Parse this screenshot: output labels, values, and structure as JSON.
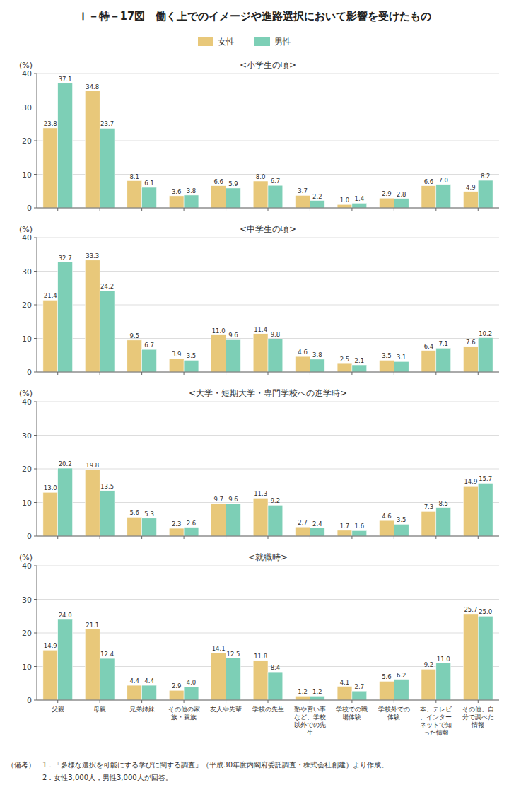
{
  "title": "Ｉ－特－17図　働く上でのイメージや進路選択において影響を受けたもの",
  "chart_data": [
    {
      "type": "bar",
      "subtitle": "<小学生の頃>",
      "categories": [
        "父親",
        "母親",
        "兄弟姉妹",
        "その他の家族・親族",
        "友人や先輩",
        "学校の先生",
        "塾や習い事など、学校以外での先生",
        "学校での職場体験",
        "学校外での体験",
        "本、テレビ、インターネットで知った情報",
        "その他、自分で調べた情報"
      ],
      "series": [
        {
          "name": "女性",
          "color": "#E8C87A",
          "values": [
            23.8,
            34.8,
            8.1,
            3.6,
            6.6,
            8.0,
            3.7,
            1.0,
            2.9,
            6.6,
            4.9
          ]
        },
        {
          "name": "男性",
          "color": "#7DCFB6",
          "values": [
            37.1,
            23.7,
            6.1,
            3.8,
            5.9,
            6.7,
            2.2,
            1.4,
            2.8,
            7.0,
            8.2
          ]
        }
      ],
      "ylabel": "(%)",
      "ylim": [
        0,
        40
      ],
      "yticks": [
        0,
        10,
        20,
        30,
        40
      ],
      "grid": true,
      "data_labels": true,
      "tick_labels": "y",
      "legend": "top"
    },
    {
      "type": "bar",
      "subtitle": "<中学生の頃>",
      "categories": [
        "父親",
        "母親",
        "兄弟姉妹",
        "その他の家族・親族",
        "友人や先輩",
        "学校の先生",
        "塾や習い事など、学校以外での先生",
        "学校での職場体験",
        "学校外での体験",
        "本、テレビ、インターネットで知った情報",
        "その他、自分で調べた情報"
      ],
      "series": [
        {
          "name": "女性",
          "color": "#E8C87A",
          "values": [
            21.4,
            33.3,
            9.5,
            3.9,
            11.0,
            11.4,
            4.6,
            2.5,
            3.5,
            6.4,
            7.6
          ]
        },
        {
          "name": "男性",
          "color": "#7DCFB6",
          "values": [
            32.7,
            24.2,
            6.7,
            3.5,
            9.6,
            9.8,
            3.8,
            2.1,
            3.1,
            7.1,
            10.2
          ]
        }
      ],
      "ylabel": "(%)",
      "ylim": [
        0,
        40
      ],
      "yticks": [
        0,
        10,
        20,
        30,
        40
      ],
      "grid": true,
      "data_labels": true,
      "tick_labels": "y"
    },
    {
      "type": "bar",
      "subtitle": "<大学・短期大学・専門学校への進学時>",
      "categories": [
        "父親",
        "母親",
        "兄弟姉妹",
        "その他の家族・親族",
        "友人や先輩",
        "学校の先生",
        "塾や習い事など、学校以外での先生",
        "学校での職場体験",
        "学校外での体験",
        "本、テレビ、インターネットで知った情報",
        "その他、自分で調べた情報"
      ],
      "series": [
        {
          "name": "女性",
          "color": "#E8C87A",
          "values": [
            13.0,
            19.8,
            5.6,
            2.3,
            9.7,
            11.3,
            2.7,
            1.7,
            4.6,
            7.3,
            14.9
          ]
        },
        {
          "name": "男性",
          "color": "#7DCFB6",
          "values": [
            20.2,
            13.5,
            5.3,
            2.6,
            9.6,
            9.2,
            2.4,
            1.6,
            3.5,
            8.5,
            15.7
          ]
        }
      ],
      "ylabel": "(%)",
      "ylim": [
        0,
        40
      ],
      "yticks": [
        0,
        10,
        20,
        30,
        40
      ],
      "grid": true,
      "data_labels": true,
      "tick_labels": "y"
    },
    {
      "type": "bar",
      "subtitle": "<就職時>",
      "categories": [
        "父親",
        "母親",
        "兄弟姉妹",
        "その他の家族・親族",
        "友人や先輩",
        "学校の先生",
        "塾や習い事など、学校以外での先生",
        "学校での職場体験",
        "学校外での体験",
        "本、テレビ、インターネットで知った情報",
        "その他、自分で調べた情報"
      ],
      "series": [
        {
          "name": "女性",
          "color": "#E8C87A",
          "values": [
            14.9,
            21.1,
            4.4,
            2.9,
            14.1,
            11.8,
            1.2,
            4.1,
            5.6,
            9.2,
            25.7
          ]
        },
        {
          "name": "男性",
          "color": "#7DCFB6",
          "values": [
            24.0,
            12.4,
            4.4,
            4.0,
            12.5,
            8.4,
            1.2,
            2.7,
            6.2,
            11.0,
            25.0
          ]
        }
      ],
      "ylabel": "(%)",
      "ylim": [
        0,
        40
      ],
      "yticks": [
        0,
        10,
        20,
        30,
        40
      ],
      "grid": true,
      "data_labels": true
    }
  ],
  "annotations": [
    "（備考）　1．「多様な選択を可能にする学びに関する調査」（平成30年度内閣府委託調査・株式会社創建）より作成。",
    "　　　　　2．女性3,000人，男性3,000人が回答。"
  ]
}
